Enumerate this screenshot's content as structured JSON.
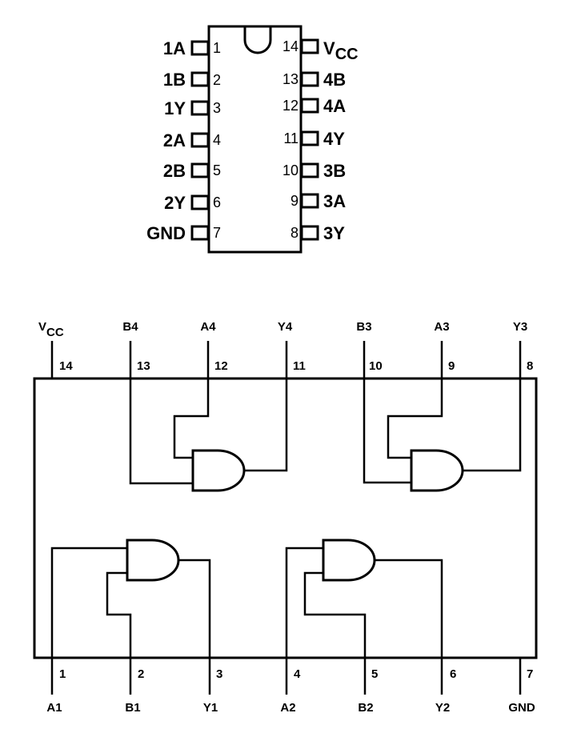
{
  "pinout": {
    "left_pins": [
      {
        "signal": "1A",
        "number": "1"
      },
      {
        "signal": "1B",
        "number": "2"
      },
      {
        "signal": "1Y",
        "number": "3"
      },
      {
        "signal": "2A",
        "number": "4"
      },
      {
        "signal": "2B",
        "number": "5"
      },
      {
        "signal": "2Y",
        "number": "6"
      },
      {
        "signal": "GND",
        "number": "7"
      }
    ],
    "right_pins": [
      {
        "signal": "V",
        "sub": "CC",
        "number": "14"
      },
      {
        "signal": "4B",
        "number": "13"
      },
      {
        "signal": "4A",
        "number": "12"
      },
      {
        "signal": "4Y",
        "number": "11"
      },
      {
        "signal": "3B",
        "number": "10"
      },
      {
        "signal": "3A",
        "number": "9"
      },
      {
        "signal": "3Y",
        "number": "8"
      }
    ]
  },
  "logic": {
    "top_pins": [
      {
        "signal": "V",
        "sub": "CC",
        "number": "14"
      },
      {
        "signal": "B4",
        "number": "13"
      },
      {
        "signal": "A4",
        "number": "12"
      },
      {
        "signal": "Y4",
        "number": "11"
      },
      {
        "signal": "B3",
        "number": "10"
      },
      {
        "signal": "A3",
        "number": "9"
      },
      {
        "signal": "Y3",
        "number": "8"
      }
    ],
    "bottom_pins": [
      {
        "signal": "A1",
        "number": "1"
      },
      {
        "signal": "B1",
        "number": "2"
      },
      {
        "signal": "Y1",
        "number": "3"
      },
      {
        "signal": "A2",
        "number": "4"
      },
      {
        "signal": "B2",
        "number": "5"
      },
      {
        "signal": "Y2",
        "number": "6"
      },
      {
        "signal": "GND",
        "number": "7"
      }
    ]
  }
}
